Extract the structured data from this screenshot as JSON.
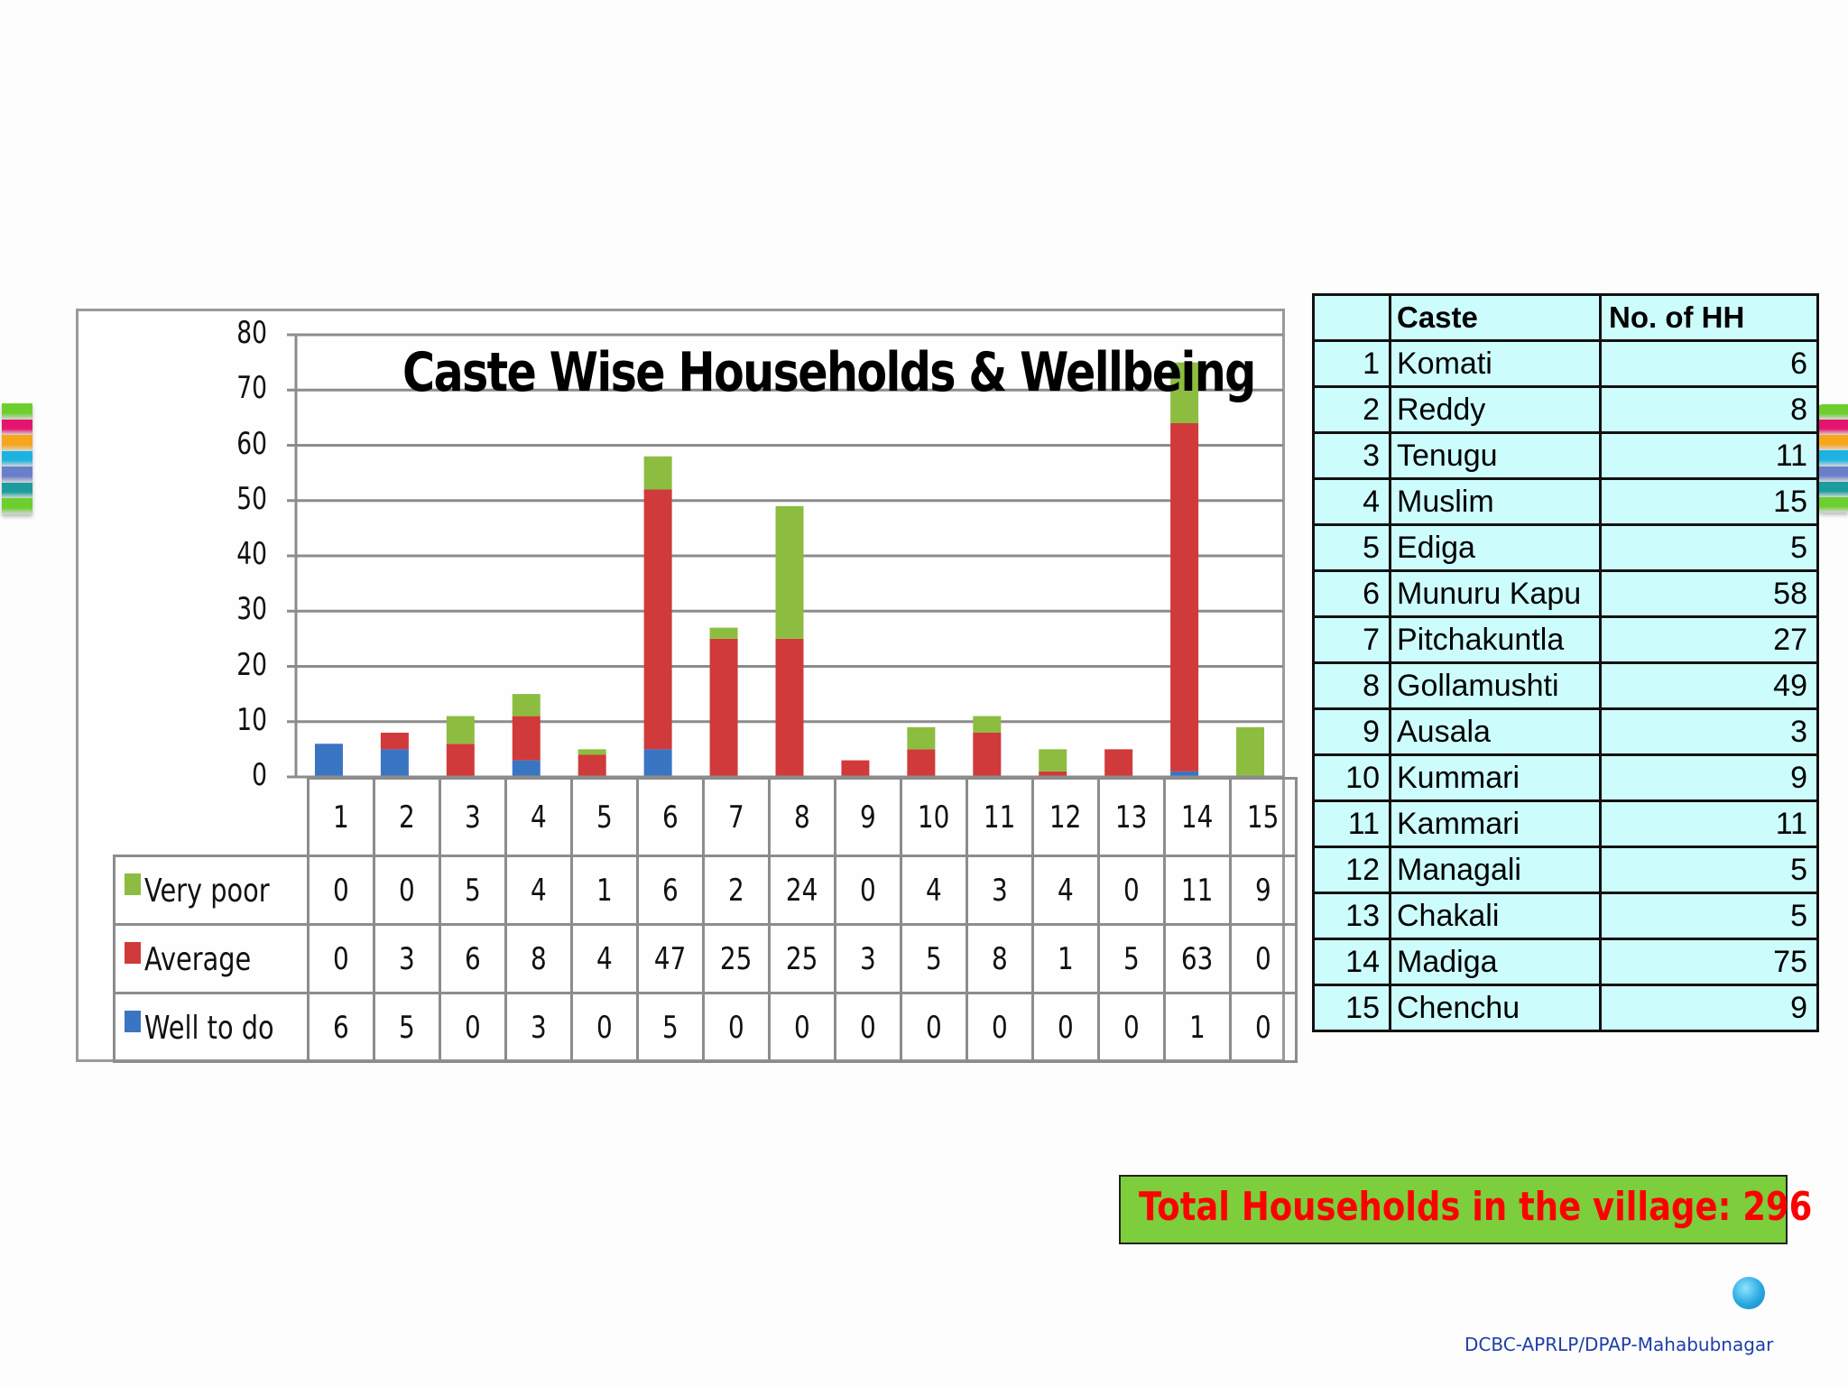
{
  "slide": {
    "title": "Caste Wise Households & Wellbeing",
    "total_households_text": "Total Households in the village: 296",
    "footer": "DCBC-APRLP/DPAP-Mahabubnagar"
  },
  "colors": {
    "very_poor": "#8cbd40",
    "average": "#d13a3a",
    "well_to_do": "#3a75c4",
    "gridline": "#8c8c8c",
    "table_bg": "#cdfcfc",
    "total_box_bg": "#7dce3c",
    "total_text": "#ff0000",
    "footer_text": "#1c3fa8"
  },
  "decorations": {
    "stripe_colors": [
      "#6ccf2e",
      "#e3156e",
      "#f7a51b",
      "#1cb3e0",
      "#6a7fc9",
      "#1c9c9c",
      "#6ccf2e"
    ]
  },
  "chart_data": {
    "type": "bar",
    "stacked": true,
    "title": "Caste Wise Households & Wellbeing",
    "xlabel": "",
    "ylabel": "",
    "ylim": [
      0,
      80
    ],
    "yticks": [
      0,
      10,
      20,
      30,
      40,
      50,
      60,
      70,
      80
    ],
    "grid": true,
    "legend_position": "data-table",
    "categories": [
      "1",
      "2",
      "3",
      "4",
      "5",
      "6",
      "7",
      "8",
      "9",
      "10",
      "11",
      "12",
      "13",
      "14",
      "15"
    ],
    "series": [
      {
        "name": "Very poor",
        "color": "#8cbd40",
        "values": [
          0,
          0,
          5,
          4,
          1,
          6,
          2,
          24,
          0,
          4,
          3,
          4,
          0,
          11,
          9
        ]
      },
      {
        "name": "Average",
        "color": "#d13a3a",
        "values": [
          0,
          3,
          6,
          8,
          4,
          47,
          25,
          25,
          3,
          5,
          8,
          1,
          5,
          63,
          0
        ]
      },
      {
        "name": "Well to do",
        "color": "#3a75c4",
        "values": [
          6,
          5,
          0,
          3,
          0,
          5,
          0,
          0,
          0,
          0,
          0,
          0,
          0,
          1,
          0
        ]
      }
    ]
  },
  "caste_table": {
    "headers": [
      "",
      "Caste",
      "No. of HH"
    ],
    "rows": [
      {
        "no": "1",
        "caste": "Komati",
        "hh": "6"
      },
      {
        "no": "2",
        "caste": "Reddy",
        "hh": "8"
      },
      {
        "no": "3",
        "caste": "Tenugu",
        "hh": "11"
      },
      {
        "no": "4",
        "caste": "Muslim",
        "hh": "15"
      },
      {
        "no": "5",
        "caste": "Ediga",
        "hh": "5"
      },
      {
        "no": "6",
        "caste": "Munuru Kapu",
        "hh": "58"
      },
      {
        "no": "7",
        "caste": "Pitchakuntla",
        "hh": "27"
      },
      {
        "no": "8",
        "caste": "Gollamushti",
        "hh": "49"
      },
      {
        "no": "9",
        "caste": "Ausala",
        "hh": "3"
      },
      {
        "no": "10",
        "caste": "Kummari",
        "hh": "9"
      },
      {
        "no": "11",
        "caste": "Kammari",
        "hh": "11"
      },
      {
        "no": "12",
        "caste": "Managali",
        "hh": "5"
      },
      {
        "no": "13",
        "caste": "Chakali",
        "hh": "5"
      },
      {
        "no": "14",
        "caste": "Madiga",
        "hh": "75"
      },
      {
        "no": "15",
        "caste": "Chenchu",
        "hh": "9"
      }
    ]
  }
}
